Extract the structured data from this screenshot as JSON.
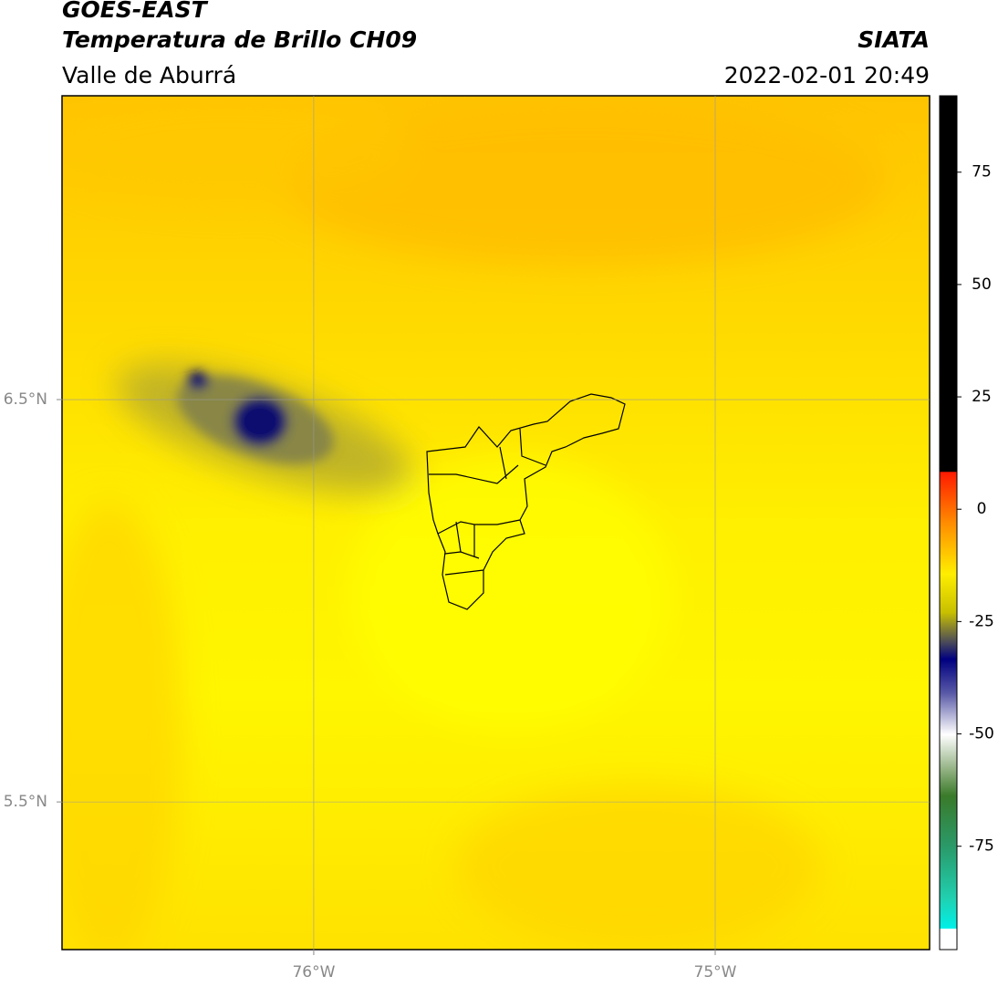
{
  "header": {
    "title": "GOES-EAST",
    "subtitle": "Temperatura de Brillo CH09",
    "region": "Valle de Aburrá",
    "source": "SIATA",
    "datetime": "2022-02-01 20:49"
  },
  "map": {
    "lonlim": [
      -76.627,
      -74.466
    ],
    "latlim": [
      5.133,
      7.255
    ],
    "lon_ticks": [
      {
        "value": -76,
        "label": "76°W"
      },
      {
        "value": -75,
        "label": "75°W"
      }
    ],
    "lat_ticks": [
      {
        "value": 6.5,
        "label": "6.5°N"
      },
      {
        "value": 5.5,
        "label": "5.5°N"
      }
    ]
  },
  "colorbar": {
    "lim": [
      -98,
      92
    ],
    "ticks": [
      75,
      50,
      25,
      0,
      -25,
      -50,
      -75
    ]
  }
}
